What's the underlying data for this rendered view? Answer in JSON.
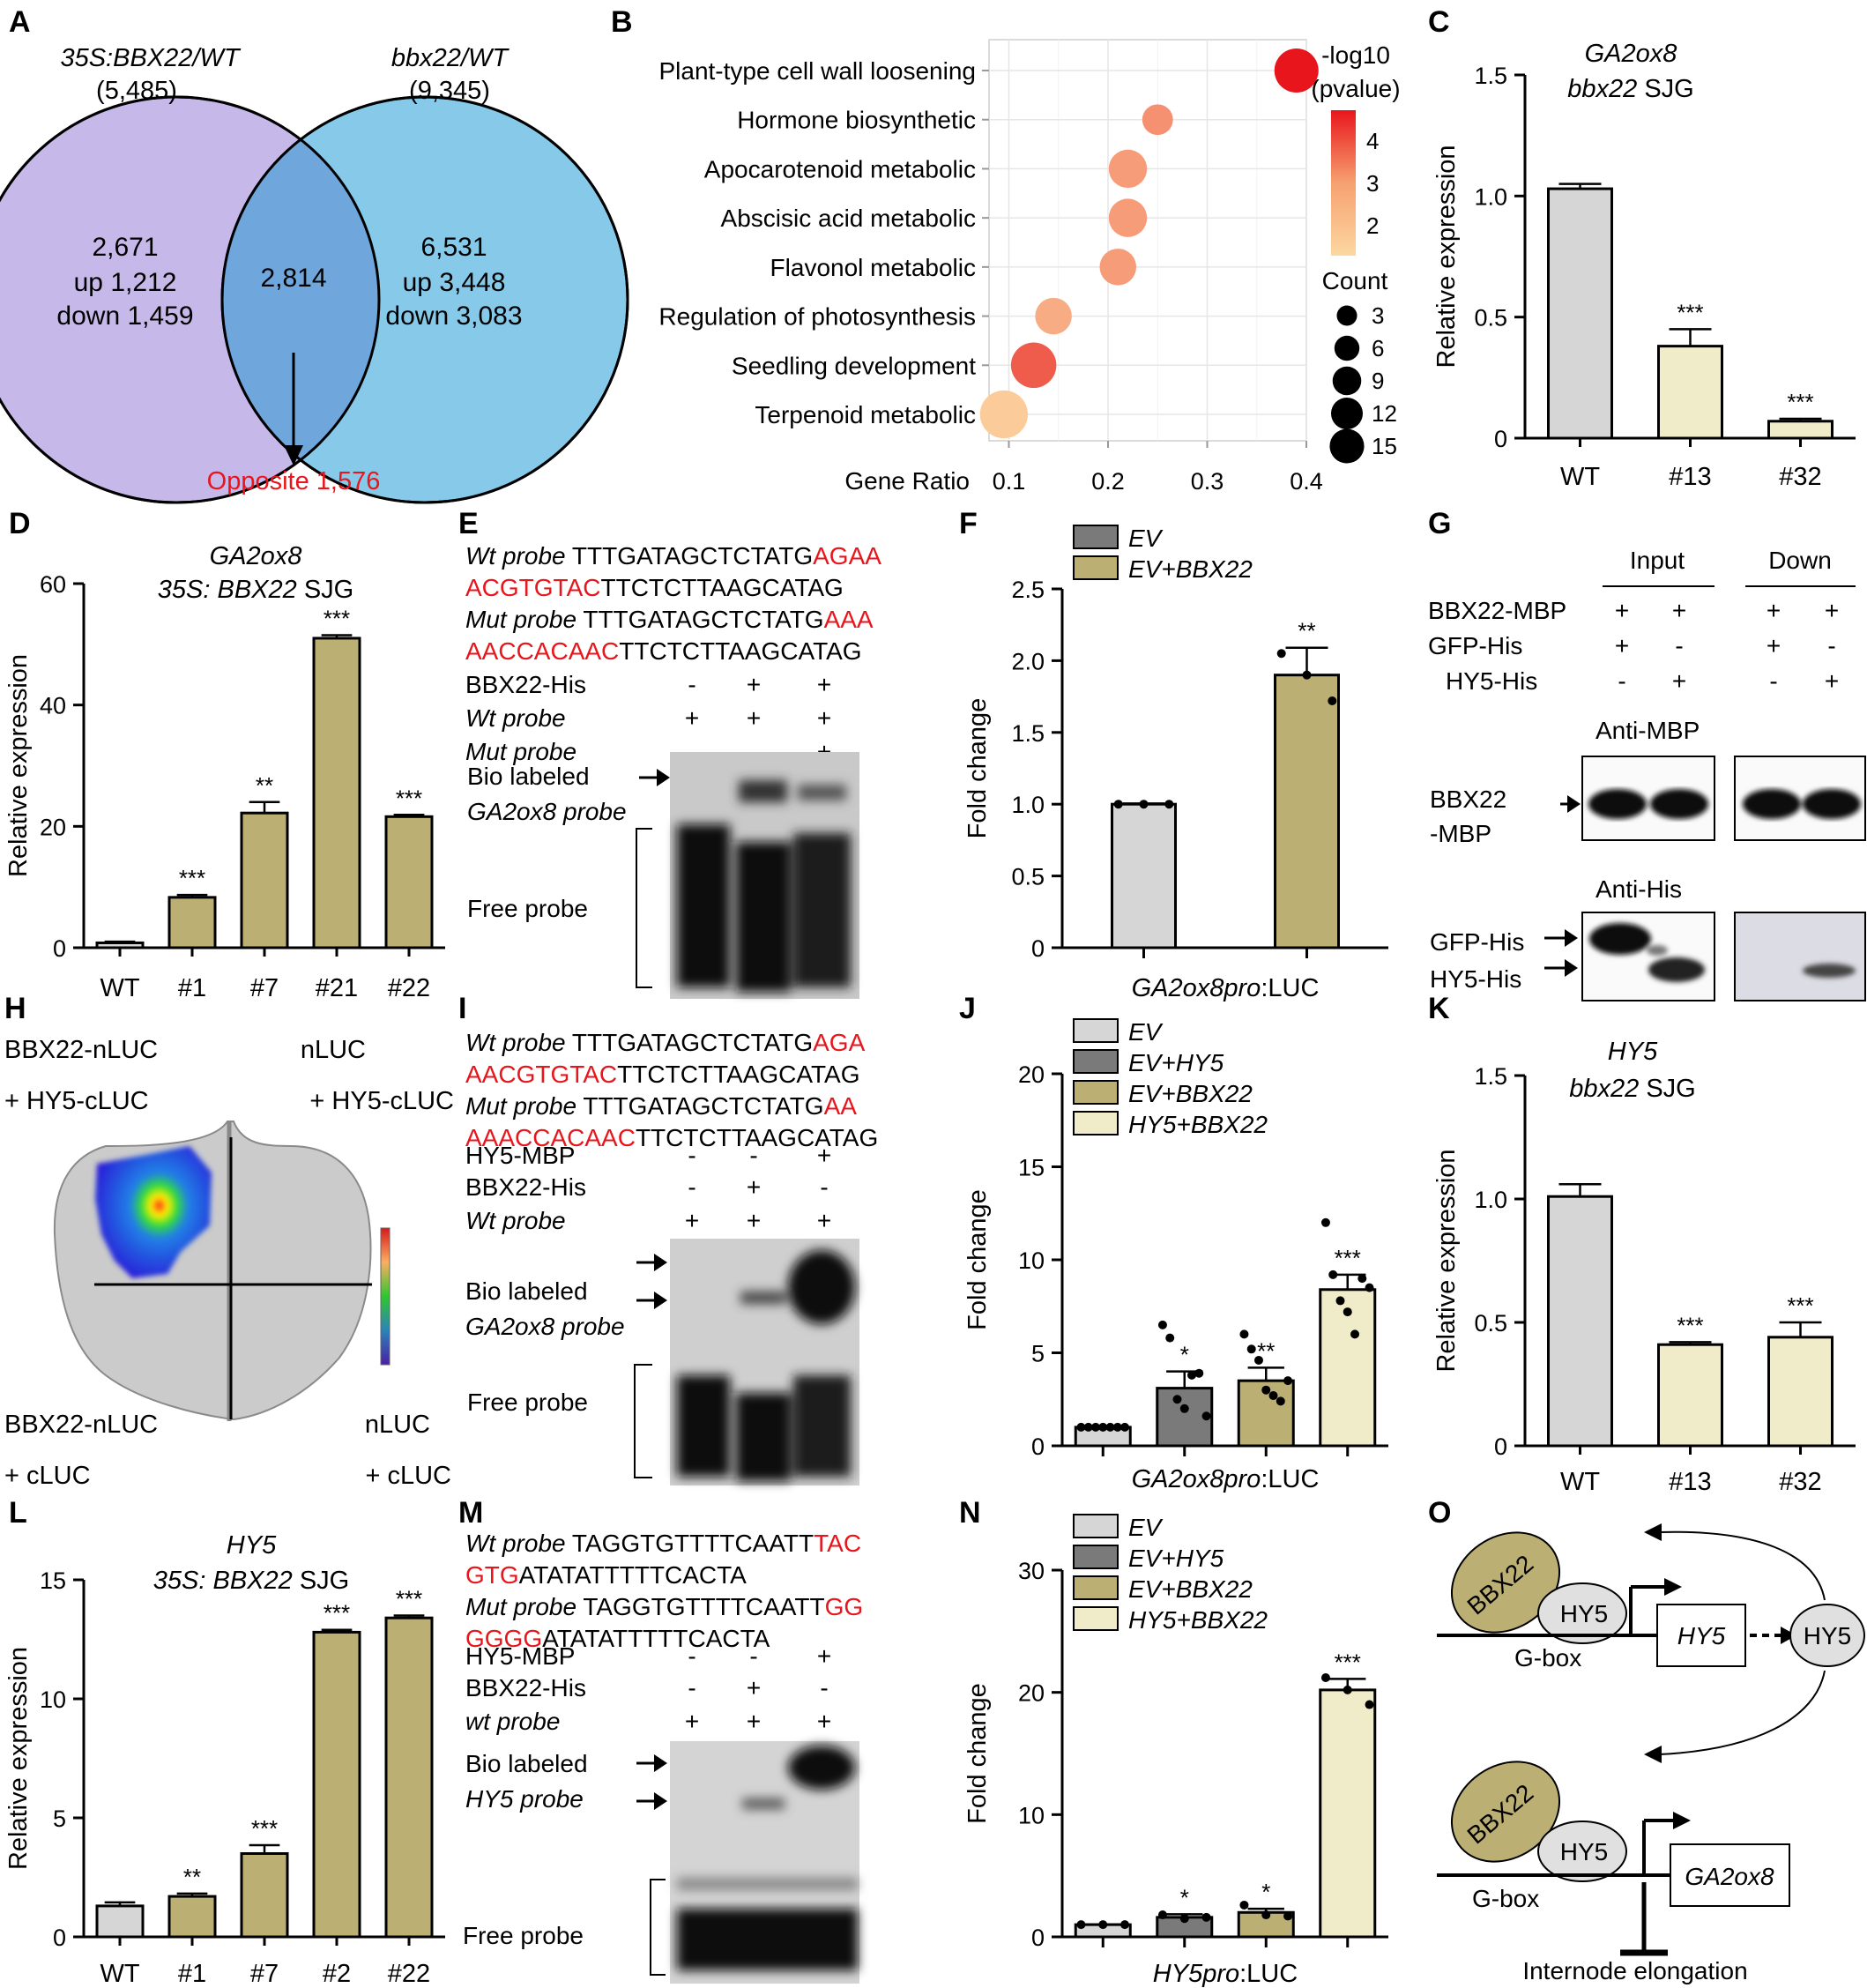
{
  "panels": [
    "A",
    "B",
    "C",
    "D",
    "E",
    "F",
    "G",
    "H",
    "I",
    "J",
    "K",
    "L",
    "M",
    "N",
    "O"
  ],
  "colors": {
    "grey": "#d6d6d6",
    "dark_grey": "#7a7a7a",
    "olive": "#bcaf74",
    "pale": "#f0ebc8",
    "venn_left": "#c6b8e8",
    "venn_right": "#86c9e9",
    "venn_mid": "#6fa6dc",
    "red": "#e8161c"
  },
  "venn": {
    "left_title": "35S:BBX22/WT",
    "left_total": "(5,485)",
    "right_title": "bbx22/WT",
    "right_total": "(9,345)",
    "left_only": [
      "2,671",
      "up 1,212",
      "down 1,459"
    ],
    "overlap": "2,814",
    "right_only": [
      "6,531",
      "up 3,448",
      "down 3,083"
    ],
    "opposite": "Opposite 1,576"
  },
  "go_dotplot": {
    "type": "scatter",
    "terms": [
      "Plant-type cell wall loosening",
      "Hormone biosynthetic",
      "Apocarotenoid metabolic",
      "Abscisic acid metabolic",
      "Flavonol metabolic",
      "Regulation of photosynthesis",
      "Seedling development",
      "Terpenoid metabolic"
    ],
    "gene_ratio": [
      0.39,
      0.25,
      0.22,
      0.22,
      0.21,
      0.145,
      0.125,
      0.095
    ],
    "count": [
      12,
      4,
      8,
      8,
      7,
      7,
      13,
      15
    ],
    "neglog10p": [
      4.6,
      2.3,
      2.1,
      2.1,
      2.1,
      1.8,
      3.3,
      1.2
    ],
    "xlabel": "Gene Ratio",
    "xticks": [
      "0.1",
      "0.2",
      "0.3",
      "0.4"
    ],
    "xlim": [
      0.08,
      0.4
    ],
    "legend_color_title": [
      "-log10",
      "(pvalue)"
    ],
    "legend_color_ticks": [
      "4",
      "3",
      "2"
    ],
    "legend_size_title": "Count",
    "legend_size_ticks": [
      "3",
      "6",
      "9",
      "12",
      "15"
    ]
  },
  "chart_data": [
    {
      "panel": "C",
      "type": "bar",
      "title": [
        "GA2ox8",
        "bbx22 SJG"
      ],
      "ylabel": "Relative expression",
      "categories": [
        "WT",
        "#13",
        "#32"
      ],
      "values": [
        1.03,
        0.38,
        0.07
      ],
      "errors": [
        0.02,
        0.07,
        0.01
      ],
      "sig": [
        "",
        "***",
        "***"
      ],
      "ylim": [
        0,
        1.5
      ],
      "yticks": [
        "0",
        "0.5",
        "1.0",
        "1.5"
      ]
    },
    {
      "panel": "D",
      "type": "bar",
      "title": [
        "GA2ox8",
        "35S: BBX22 SJG"
      ],
      "ylabel": "Relative expression",
      "categories": [
        "WT",
        "#1",
        "#7",
        "#21",
        "#22"
      ],
      "values": [
        0.8,
        8.3,
        22.2,
        51,
        21.6
      ],
      "errors": [
        0.2,
        0.4,
        1.8,
        0.5,
        0.3
      ],
      "sig": [
        "",
        "***",
        "**",
        "***",
        "***"
      ],
      "ylim": [
        0,
        60
      ],
      "yticks": [
        "0",
        "20",
        "40",
        "60"
      ]
    },
    {
      "panel": "F",
      "type": "bar",
      "ylabel": "Fold change",
      "xlabel": "GA2ox8pro:LUC",
      "legend": [
        "EV",
        "EV+BBX22"
      ],
      "categories": [
        "EV",
        "EV+BBX22"
      ],
      "values": [
        1.0,
        1.9
      ],
      "errors": [
        0.005,
        0.19
      ],
      "sig": [
        "",
        "**"
      ],
      "points": [
        [
          1,
          1,
          1
        ],
        [
          2.05,
          1.9,
          1.72
        ]
      ],
      "ylim": [
        0,
        2.5
      ],
      "yticks": [
        "0",
        "0.5",
        "1.0",
        "1.5",
        "2.0",
        "2.5"
      ]
    },
    {
      "panel": "J",
      "type": "bar",
      "ylabel": "Fold change",
      "xlabel": "GA2ox8pro:LUC",
      "legend": [
        "EV",
        "EV+HY5",
        "EV+BBX22",
        "HY5+BBX22"
      ],
      "categories": [
        "EV",
        "EV+HY5",
        "EV+BBX22",
        "HY5+BBX22"
      ],
      "values": [
        1.0,
        3.1,
        3.5,
        8.4
      ],
      "errors": [
        0.02,
        0.9,
        0.7,
        0.8
      ],
      "sig": [
        "",
        "*",
        "**",
        "***"
      ],
      "points": [
        [
          1,
          1,
          1,
          1,
          1,
          1,
          1
        ],
        [
          6.5,
          5.8,
          2.5,
          2.0,
          3.8,
          3.9,
          1.6
        ],
        [
          6.0,
          5.2,
          4.6,
          3.0,
          2.7,
          2.4,
          3.5
        ],
        [
          12.0,
          9.2,
          7.8,
          7.2,
          6.0,
          9.0,
          8.5
        ]
      ],
      "ylim": [
        0,
        20
      ],
      "yticks": [
        "0",
        "5",
        "10",
        "15",
        "20"
      ]
    },
    {
      "panel": "K",
      "type": "bar",
      "title": [
        "HY5",
        "bbx22 SJG"
      ],
      "ylabel": "Relative expression",
      "categories": [
        "WT",
        "#13",
        "#32"
      ],
      "values": [
        1.01,
        0.41,
        0.44
      ],
      "errors": [
        0.05,
        0.01,
        0.06
      ],
      "sig": [
        "",
        "***",
        "***"
      ],
      "ylim": [
        0,
        1.5
      ],
      "yticks": [
        "0",
        "0.5",
        "1.0",
        "1.5"
      ]
    },
    {
      "panel": "L",
      "type": "bar",
      "title": [
        "HY5",
        "35S: BBX22 SJG"
      ],
      "ylabel": "Relative expression",
      "categories": [
        "WT",
        "#1",
        "#7",
        "#2",
        "#22"
      ],
      "values": [
        1.3,
        1.7,
        3.5,
        12.8,
        13.4
      ],
      "errors": [
        0.15,
        0.12,
        0.35,
        0.1,
        0.1
      ],
      "sig": [
        "",
        "**",
        "***",
        "***",
        "***"
      ],
      "ylim": [
        0,
        15
      ],
      "yticks": [
        "0",
        "5",
        "10",
        "15"
      ]
    },
    {
      "panel": "N",
      "type": "bar",
      "ylabel": "Fold change",
      "xlabel": "HY5pro:LUC",
      "legend": [
        "EV",
        "EV+HY5",
        "EV+BBX22",
        "HY5+BBX22"
      ],
      "categories": [
        "EV",
        "EV+HY5",
        "EV+BBX22",
        "HY5+BBX22"
      ],
      "values": [
        1.0,
        1.6,
        2.0,
        20.2
      ],
      "errors": [
        0.02,
        0.25,
        0.3,
        0.9
      ],
      "sig": [
        "",
        "*",
        "*",
        "***"
      ],
      "points": [
        [
          1,
          1,
          1
        ],
        [
          1.8,
          1.5,
          1.6
        ],
        [
          2.6,
          1.8,
          1.7
        ],
        [
          21.2,
          20.2,
          19.0
        ]
      ],
      "ylim": [
        0,
        30
      ],
      "yticks": [
        "0",
        "10",
        "20",
        "30"
      ]
    }
  ],
  "emsa_E": {
    "wt_line1": [
      "Wt probe",
      " TTTGATAGCTCTATG",
      "AGAA"
    ],
    "wt_line2": [
      "ACGTGTAC",
      "TTCTCTTAAGCATAG"
    ],
    "mut_line1": [
      "Mut probe",
      " TTTGATAGCTCTATG",
      "AAA"
    ],
    "mut_line2": [
      "AACCACAAC",
      "TTCTCTTAAGCATAG"
    ],
    "rows": [
      {
        "label": "BBX22-His",
        "marks": [
          "-",
          "+",
          "+"
        ]
      },
      {
        "label": "Wt probe",
        "marks": [
          "+",
          "+",
          "+"
        ]
      },
      {
        "label": "Mut probe",
        "marks": [
          "-",
          "-",
          "+"
        ]
      }
    ],
    "bio": [
      "Bio labeled",
      "GA2ox8 probe"
    ],
    "free": "Free probe"
  },
  "emsa_I": {
    "wt_line1": [
      "Wt probe",
      " TTTGATAGCTCTATG",
      "AGA"
    ],
    "wt_line2": [
      "AACGTGTAC",
      "TTCTCTTAAGCATAG"
    ],
    "mut_line1": [
      "Mut probe",
      " TTTGATAGCTCTATG",
      "AA"
    ],
    "mut_line2": [
      "AAACCACAAC",
      "TTCTCTTAAGCATAG"
    ],
    "rows": [
      {
        "label": "HY5-MBP",
        "marks": [
          "-",
          "-",
          "+"
        ]
      },
      {
        "label": "BBX22-His",
        "marks": [
          "-",
          "+",
          "-"
        ]
      },
      {
        "label": "Wt probe",
        "marks": [
          "+",
          "+",
          "+"
        ]
      }
    ],
    "bio": [
      "Bio labeled",
      "GA2ox8 probe"
    ],
    "free": "Free probe"
  },
  "emsa_M": {
    "wt_line1": [
      "Wt probe",
      " TAGGTGTTTTCAATT",
      "TAC"
    ],
    "wt_line2": [
      "GTG",
      "ATATATTTTTCACTA"
    ],
    "mut_line1": [
      "Mut probe",
      " TAGGTGTTTTCAATT",
      "GG"
    ],
    "mut_line2": [
      "GGGG",
      "ATATATTTTTCACTA"
    ],
    "rows": [
      {
        "label": "HY5-MBP",
        "marks": [
          "-",
          "-",
          "+"
        ]
      },
      {
        "label": "BBX22-His",
        "marks": [
          "-",
          "+",
          "-"
        ]
      },
      {
        "label": "wt probe",
        "marks": [
          "+",
          "+",
          "+"
        ]
      }
    ],
    "bio": [
      "Bio labeled",
      "HY5 probe"
    ],
    "free": "Free probe"
  },
  "pulldown_G": {
    "col_headers": [
      "Input",
      "Down"
    ],
    "rows": [
      {
        "label": "BBX22-MBP",
        "marks": [
          "+",
          "+",
          "+",
          "+"
        ]
      },
      {
        "label": "GFP-His",
        "marks": [
          "+",
          "-",
          "+",
          "-"
        ]
      },
      {
        "label": "HY5-His",
        "marks": [
          "-",
          "+",
          "-",
          "+"
        ]
      }
    ],
    "anti_mbp": "Anti-MBP",
    "anti_his": "Anti-His",
    "band_mbp": [
      "BBX22",
      "-MBP"
    ],
    "band_gfp": "GFP-His",
    "band_hy5": "HY5-His"
  },
  "lci_H": {
    "tl": [
      "BBX22-nLUC",
      "+ HY5-cLUC"
    ],
    "tr": [
      "nLUC",
      "+ HY5-cLUC"
    ],
    "bl": [
      "BBX22-nLUC",
      "+ cLUC"
    ],
    "br": [
      "nLUC",
      "+ cLUC"
    ]
  },
  "model_O": {
    "bbx22": "BBX22",
    "hy5": "HY5",
    "gbox": "G-box",
    "gene1": "HY5",
    "gene2": "GA2ox8",
    "outcome": "Internode elongation"
  }
}
